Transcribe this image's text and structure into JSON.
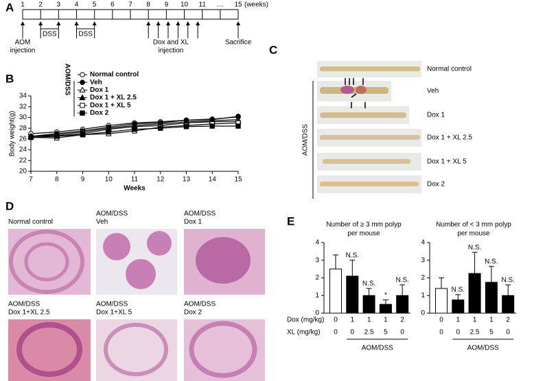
{
  "panel_labels": [
    "A",
    "B",
    "C",
    "D",
    "E"
  ],
  "panel_a": {
    "weeks": [
      "1",
      "2",
      "3",
      "4",
      "5",
      "6",
      "7",
      "8",
      "9",
      "10",
      "11",
      "…",
      "15"
    ],
    "unit": "(weeks)",
    "events": [
      {
        "lines": [
          "AOM",
          "injection"
        ]
      },
      {
        "lines": [
          "DSS"
        ]
      },
      {
        "lines": [
          "DSS"
        ]
      },
      {
        "lines": [
          "Dox and XL",
          "injection"
        ]
      },
      {
        "lines": [
          "Sacrifice"
        ]
      }
    ]
  },
  "panel_c": {
    "labels": [
      "Normal control",
      "Veh",
      "Dox 1",
      "Dox 1 + XL 2.5",
      "Dox 1 + XL 5",
      "Dox 2"
    ],
    "group_label": "AOM/DSS"
  },
  "panel_d": {
    "captions": [
      [
        "Normal control"
      ],
      [
        "AOM/DSS",
        "Veh"
      ],
      [
        "AOM/DSS",
        "Dox 1"
      ],
      [
        "AOM/DSS",
        "Dox 1+XL 2.5"
      ],
      [
        "AOM/DSS",
        "Dox 1+XL 5"
      ],
      [
        "AOM/DSS",
        "Dox 2"
      ]
    ]
  },
  "panel_e": {
    "dose_labels": [
      "Dox (mg/kg)",
      "XL (mg/kg)"
    ]
  },
  "chart_data": [
    {
      "type": "line",
      "xlabel": "Weeks",
      "ylabel": "Body weight(g)",
      "legend_group": "AOM/DSS",
      "x": [
        7,
        8,
        9,
        10,
        11,
        12,
        13,
        14,
        15
      ],
      "xlim": [
        7,
        15
      ],
      "xticks": [
        7,
        8,
        9,
        10,
        11,
        12,
        13,
        14,
        15
      ],
      "ylim": [
        20,
        34
      ],
      "yticks": [
        20,
        22,
        24,
        26,
        28,
        30,
        32,
        34
      ],
      "grid": false,
      "series": [
        {
          "name": "Normal control",
          "color": "#000000",
          "marker": "circle",
          "filled": false,
          "values": [
            27,
            27.3,
            27.8,
            28.5,
            29,
            29.2,
            29.5,
            29.7,
            30.1
          ]
        },
        {
          "name": "Veh",
          "color": "#000000",
          "marker": "circle",
          "filled": true,
          "values": [
            26.5,
            27,
            27.5,
            28.2,
            28.8,
            29,
            29.5,
            29.6,
            30.2
          ]
        },
        {
          "name": "Dox 1",
          "color": "#000000",
          "marker": "triangle",
          "filled": false,
          "values": [
            26.5,
            26.8,
            27.3,
            28,
            28.5,
            28.8,
            29.2,
            29.4,
            29.6
          ]
        },
        {
          "name": "Dox 1 + XL 2.5",
          "color": "#000000",
          "marker": "triangle",
          "filled": true,
          "values": [
            26.5,
            26.6,
            27,
            27.8,
            28.3,
            28.5,
            29,
            29.2,
            29.3
          ]
        },
        {
          "name": "Dox 1 + XL 5",
          "color": "#000000",
          "marker": "square",
          "filled": false,
          "values": [
            26.3,
            26.2,
            26.8,
            27,
            27.5,
            28.2,
            28.5,
            28.8,
            29
          ]
        },
        {
          "name": "Dox 2",
          "color": "#000000",
          "marker": "square",
          "filled": true,
          "values": [
            26.3,
            26.5,
            26.8,
            27.3,
            27.8,
            28,
            28.3,
            28.4,
            28.4
          ]
        }
      ]
    },
    {
      "type": "bar",
      "title": [
        "Number of ≥ 3 mm polyp",
        "per mouse"
      ],
      "ylim": [
        0,
        4
      ],
      "yticks": [
        0,
        1,
        2,
        3,
        4
      ],
      "values": [
        2.5,
        2.1,
        1.0,
        0.5,
        1.0
      ],
      "errors": [
        0.8,
        0.9,
        0.4,
        0.25,
        0.6
      ],
      "colors": [
        "#ffffff",
        "#000000",
        "#000000",
        "#000000",
        "#000000"
      ],
      "annotations": [
        null,
        "N.S.",
        "N.S.",
        "*",
        "N.S."
      ],
      "dox": [
        0,
        1,
        1,
        1,
        2
      ],
      "xl": [
        0,
        0,
        2.5,
        5,
        0
      ],
      "group_label": "AOM/DSS"
    },
    {
      "type": "bar",
      "title": [
        "Number of  < 3 mm polyp",
        "per mouse"
      ],
      "ylim": [
        0,
        4
      ],
      "yticks": [
        0,
        1,
        2,
        3,
        4
      ],
      "values": [
        1.4,
        0.75,
        2.25,
        1.75,
        1.0
      ],
      "errors": [
        0.6,
        0.3,
        1.2,
        0.9,
        0.6
      ],
      "colors": [
        "#ffffff",
        "#000000",
        "#000000",
        "#000000",
        "#000000"
      ],
      "annotations": [
        null,
        "N.S.",
        "N.S.",
        "N.S.",
        "N.S."
      ],
      "dox": [
        0,
        1,
        1,
        1,
        2
      ],
      "xl": [
        0,
        0,
        2.5,
        5,
        0
      ],
      "group_label": "AOM/DSS"
    }
  ]
}
